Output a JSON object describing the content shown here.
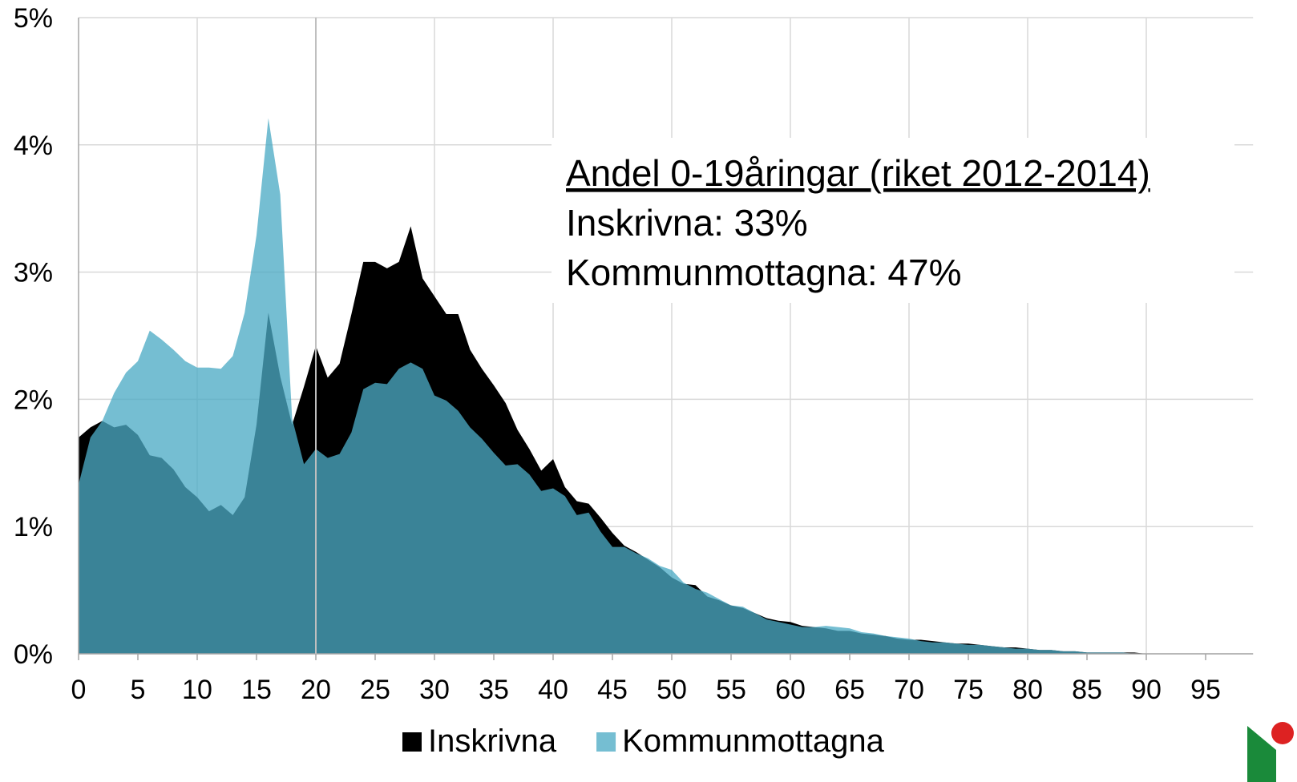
{
  "chart_data": {
    "type": "area",
    "x": [
      0,
      1,
      2,
      3,
      4,
      5,
      6,
      7,
      8,
      9,
      10,
      11,
      12,
      13,
      14,
      15,
      16,
      17,
      18,
      19,
      20,
      21,
      22,
      23,
      24,
      25,
      26,
      27,
      28,
      29,
      30,
      31,
      32,
      33,
      34,
      35,
      36,
      37,
      38,
      39,
      40,
      41,
      42,
      43,
      44,
      45,
      46,
      47,
      48,
      49,
      50,
      51,
      52,
      53,
      54,
      55,
      56,
      57,
      58,
      59,
      60,
      61,
      62,
      63,
      64,
      65,
      66,
      67,
      68,
      69,
      70,
      71,
      72,
      73,
      74,
      75,
      76,
      77,
      78,
      79,
      80,
      81,
      82,
      83,
      84,
      85,
      86,
      87,
      88,
      89,
      90,
      91,
      92,
      93,
      94,
      95,
      96,
      97,
      98,
      99
    ],
    "series": [
      {
        "name": "Inskrivna",
        "color": "#000000",
        "opacity": 1,
        "values": [
          1.7,
          1.78,
          1.83,
          1.78,
          1.8,
          1.72,
          1.56,
          1.54,
          1.45,
          1.31,
          1.23,
          1.12,
          1.17,
          1.09,
          1.23,
          1.8,
          2.68,
          2.18,
          1.8,
          2.1,
          2.42,
          2.17,
          2.28,
          2.67,
          3.08,
          3.08,
          3.03,
          3.08,
          3.36,
          2.95,
          2.81,
          2.67,
          2.67,
          2.39,
          2.24,
          2.11,
          1.97,
          1.76,
          1.61,
          1.44,
          1.53,
          1.31,
          1.2,
          1.18,
          1.07,
          0.95,
          0.85,
          0.8,
          0.74,
          0.68,
          0.6,
          0.55,
          0.54,
          0.45,
          0.42,
          0.38,
          0.36,
          0.32,
          0.28,
          0.26,
          0.25,
          0.22,
          0.21,
          0.2,
          0.18,
          0.18,
          0.16,
          0.15,
          0.14,
          0.12,
          0.11,
          0.11,
          0.1,
          0.09,
          0.08,
          0.08,
          0.07,
          0.06,
          0.05,
          0.05,
          0.04,
          0.03,
          0.03,
          0.02,
          0.02,
          0.01,
          0.01,
          0.01,
          0.01,
          0.01,
          0,
          0,
          0,
          0,
          0,
          0,
          0,
          0,
          0,
          0
        ]
      },
      {
        "name": "Kommunmottagna",
        "color": "#4babc5",
        "opacity": 0.77,
        "values": [
          1.33,
          1.7,
          1.83,
          2.05,
          2.21,
          2.3,
          2.54,
          2.47,
          2.39,
          2.3,
          2.25,
          2.25,
          2.24,
          2.34,
          2.68,
          3.29,
          4.21,
          3.61,
          1.85,
          1.49,
          1.61,
          1.54,
          1.57,
          1.74,
          2.08,
          2.13,
          2.12,
          2.24,
          2.29,
          2.24,
          2.03,
          1.99,
          1.91,
          1.78,
          1.69,
          1.58,
          1.48,
          1.49,
          1.41,
          1.28,
          1.3,
          1.24,
          1.09,
          1.11,
          0.96,
          0.84,
          0.84,
          0.79,
          0.75,
          0.69,
          0.66,
          0.56,
          0.51,
          0.48,
          0.43,
          0.38,
          0.37,
          0.32,
          0.27,
          0.25,
          0.23,
          0.21,
          0.21,
          0.22,
          0.21,
          0.2,
          0.17,
          0.16,
          0.14,
          0.13,
          0.12,
          0.1,
          0.09,
          0.09,
          0.08,
          0.07,
          0.07,
          0.06,
          0.05,
          0.04,
          0.04,
          0.03,
          0.03,
          0.02,
          0.02,
          0.01,
          0.01,
          0.01,
          0.01,
          0,
          0,
          0,
          0,
          0,
          0,
          0,
          0,
          0,
          0,
          0
        ]
      }
    ],
    "xlim": [
      0,
      99
    ],
    "xticks": [
      0,
      5,
      10,
      15,
      20,
      25,
      30,
      35,
      40,
      45,
      50,
      55,
      60,
      65,
      70,
      75,
      80,
      85,
      90,
      95
    ],
    "ylim": [
      0,
      5
    ],
    "yticks": [
      {
        "value": 0,
        "label": "0%"
      },
      {
        "value": 1,
        "label": "1%"
      },
      {
        "value": 2,
        "label": "2%"
      },
      {
        "value": 3,
        "label": "3%"
      },
      {
        "value": 4,
        "label": "4%"
      },
      {
        "value": 5,
        "label": "5%"
      }
    ],
    "grid": true,
    "reference_line": 20,
    "annotation": [
      "Andel 0-19åringar (riket 2012-2014)",
      "Inskrivna: 33%",
      "Kommunmottagna: 47%"
    ],
    "legend": "bottom"
  }
}
